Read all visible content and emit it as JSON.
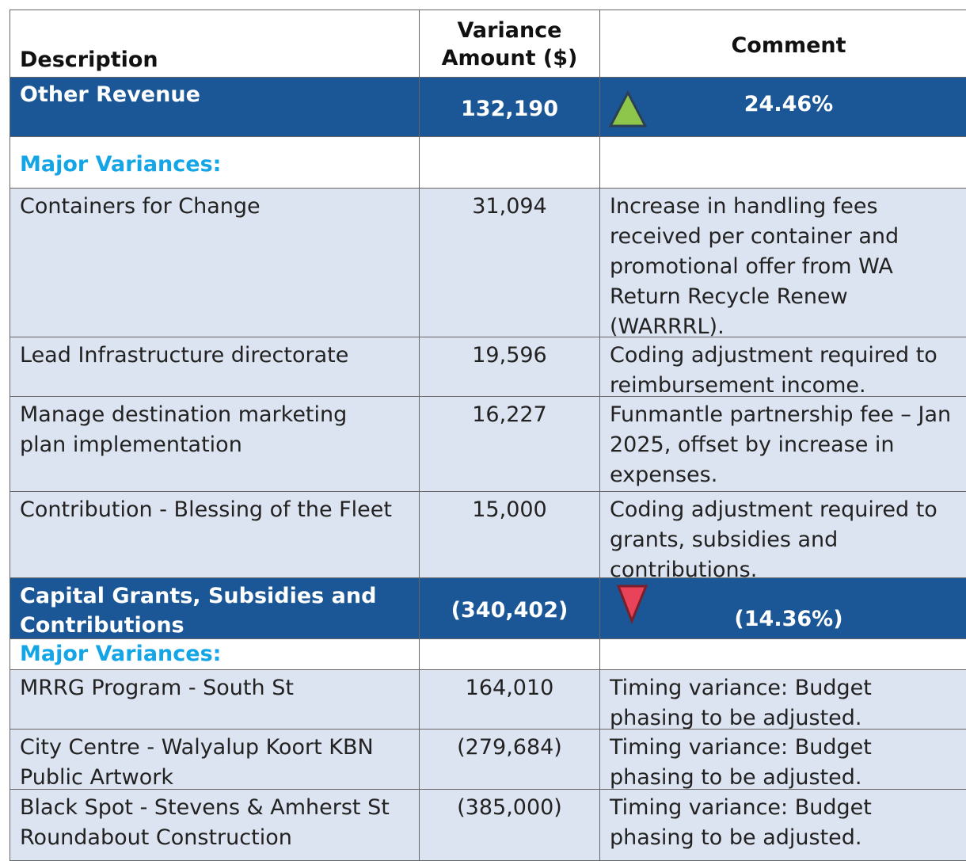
{
  "table": {
    "header": [
      "Description",
      "Variance Amount ($)",
      "Comment"
    ],
    "sections": [
      {
        "title": "Other Revenue",
        "amount": "132,190",
        "change": "24.46%",
        "subheading": "Major Variances:",
        "rows": [
          [
            "Containers for Change",
            "31,094",
            "Increase in handling fees received per container and promotional offer from WA Return Recycle Renew (WARRRL)."
          ],
          [
            "Lead Infrastructure directorate",
            "19,596",
            "Coding adjustment required to reimbursement income."
          ],
          [
            "Manage destination marketing plan implementation",
            "16,227",
            "Funmantle partnership fee – Jan 2025, offset by increase in expenses."
          ],
          [
            "Contribution - Blessing of the Fleet",
            "15,000",
            "Coding adjustment required to grants, subsidies and contributions."
          ]
        ]
      },
      {
        "title": "Capital Grants, Subsidies and Contributions",
        "amount": "(340,402)",
        "change": "(14.36%)",
        "subheading": "Major Variances:",
        "rows": [
          [
            "MRRG Program - South St",
            "164,010",
            "Timing variance: Budget phasing to be adjusted."
          ],
          [
            "City Centre - Walyalup Koort KBN Public Artwork",
            "(279,684)",
            "Timing variance: Budget phasing to be adjusted."
          ],
          [
            "Black Spot - Stevens & Amherst St Roundabout Construction",
            "(385,000)",
            "Timing variance: Budget phasing to be adjusted."
          ]
        ]
      }
    ]
  }
}
